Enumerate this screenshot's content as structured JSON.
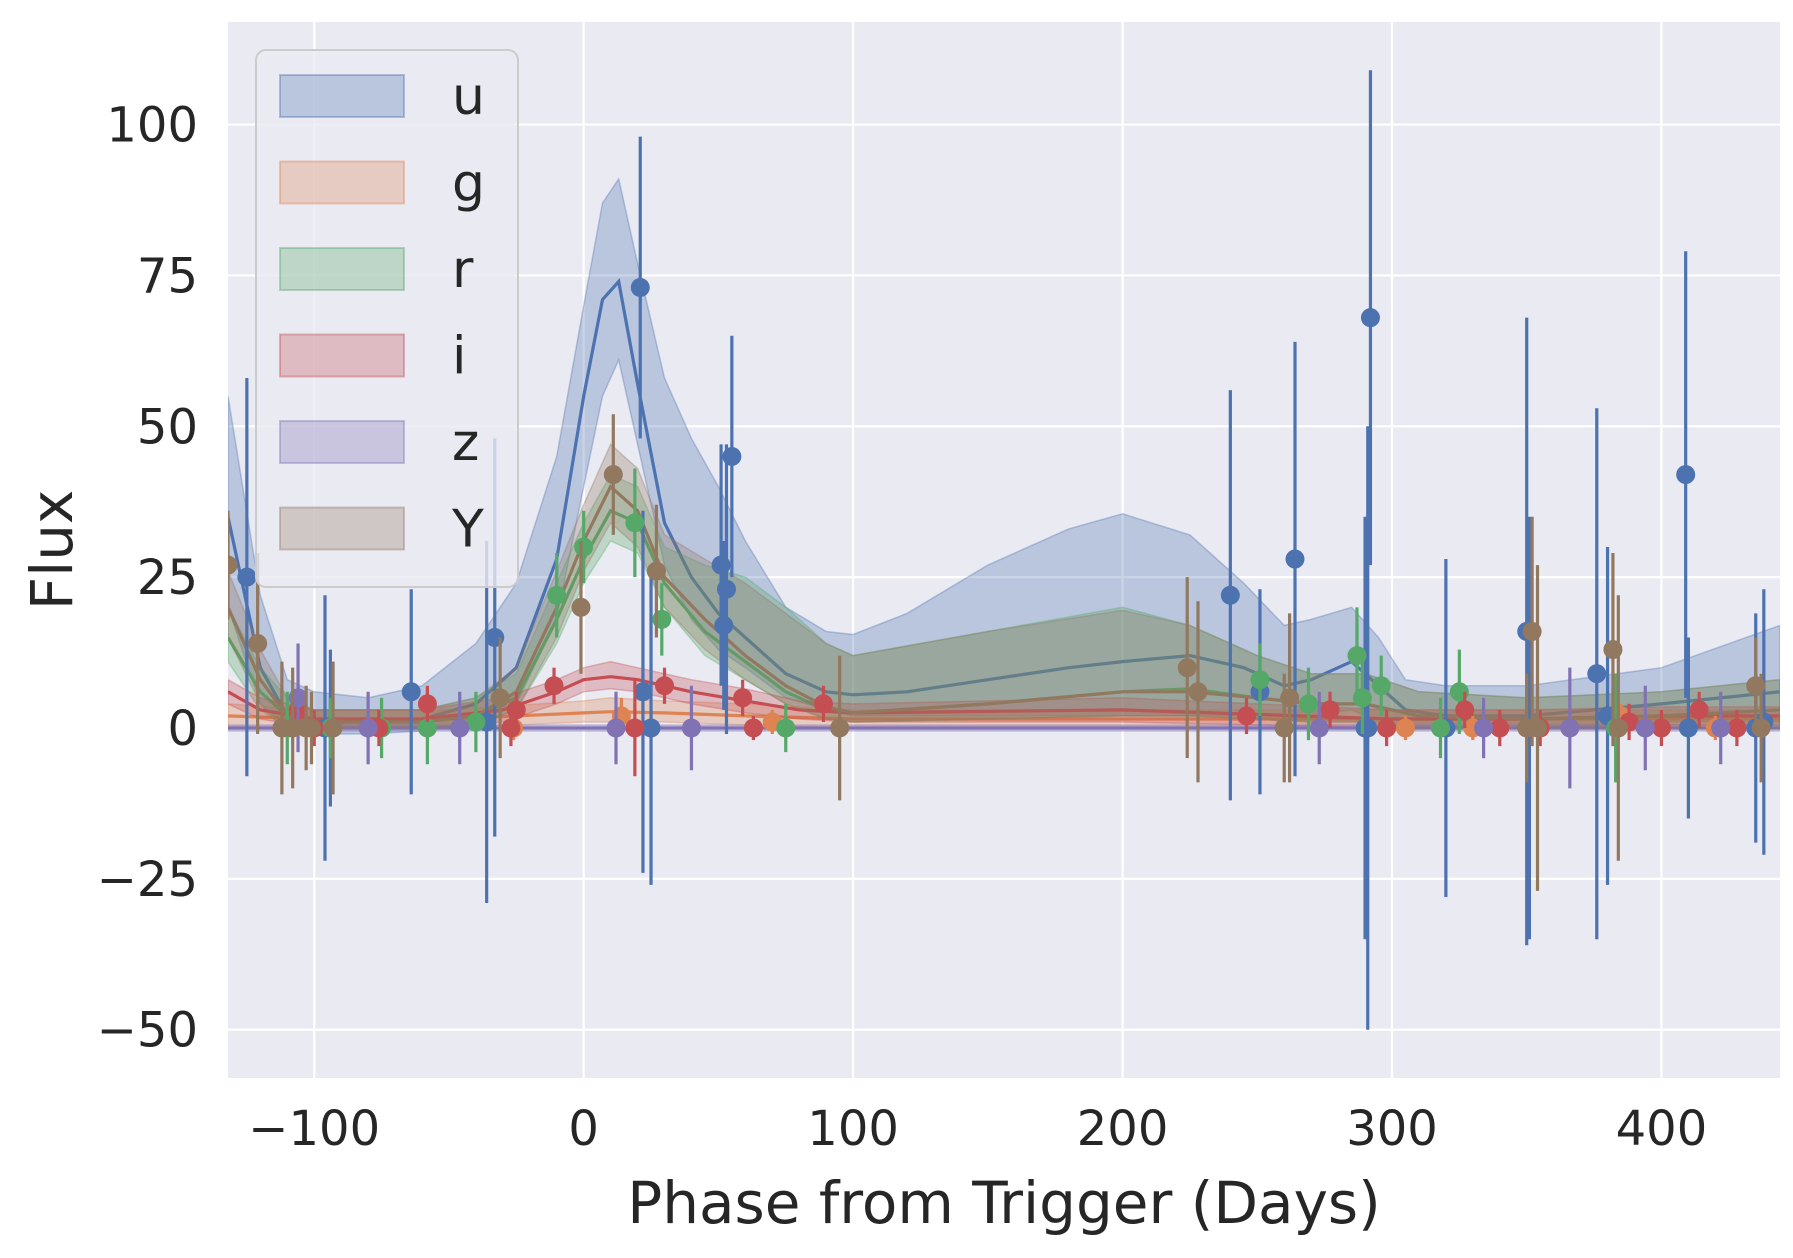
{
  "chart_data": {
    "type": "line",
    "title": "",
    "xlabel": "Phase from Trigger (Days)",
    "ylabel": "Flux",
    "xlim": [
      -132,
      444
    ],
    "ylim": [
      -58,
      117
    ],
    "x_ticks": [
      -100,
      0,
      100,
      200,
      300,
      400
    ],
    "x_tick_labels": [
      "−100",
      "0",
      "100",
      "200",
      "300",
      "400"
    ],
    "y_ticks": [
      -50,
      -25,
      0,
      25,
      50,
      75,
      100
    ],
    "y_tick_labels": [
      "−50",
      "−25",
      "0",
      "25",
      "50",
      "75",
      "100"
    ],
    "grid": true,
    "legend_position": "top-left",
    "style": {
      "background": "#eaeaf2",
      "grid_color": "#ffffff"
    },
    "series": [
      {
        "name": "u",
        "color": "#4c72b0",
        "model_x": [
          -132,
          -120,
          -110,
          -100,
          -80,
          -60,
          -40,
          -25,
          -10,
          0,
          7,
          13,
          20,
          30,
          40,
          50,
          60,
          75,
          90,
          100,
          120,
          150,
          180,
          200,
          225,
          245,
          260,
          270,
          285,
          295,
          305,
          320,
          350,
          400,
          444
        ],
        "model_y": [
          35,
          10,
          2,
          1,
          1,
          1.5,
          4,
          10,
          28,
          55,
          71,
          74,
          57,
          34,
          25,
          19,
          15,
          9,
          6,
          5.5,
          6,
          8,
          10,
          11,
          12,
          10,
          7,
          8,
          11,
          7,
          3,
          2,
          2,
          4,
          6
        ],
        "band_lower": [
          20,
          4,
          -1,
          -1,
          -1,
          -0.5,
          1,
          4,
          18,
          40,
          55,
          61,
          47,
          27,
          18,
          13,
          10,
          5,
          3,
          2,
          2,
          2,
          2,
          2,
          2,
          2,
          1,
          2,
          3,
          1,
          0,
          0,
          0,
          1,
          1
        ],
        "band_upper": [
          55,
          22,
          8,
          6,
          5,
          7,
          14,
          24,
          45,
          70,
          87,
          91,
          77,
          58,
          48,
          40,
          31,
          20,
          16,
          15.5,
          19,
          27,
          33,
          35.5,
          32,
          24,
          17,
          18,
          20,
          15,
          8,
          7,
          7,
          10,
          17
        ],
        "points": [
          {
            "x": -125,
            "y": 25,
            "err": 33
          },
          {
            "x": -96,
            "y": 0,
            "err": 22
          },
          {
            "x": -94,
            "y": 0,
            "err": 13
          },
          {
            "x": -64,
            "y": 6,
            "err": 17
          },
          {
            "x": -36,
            "y": 1,
            "err": 30
          },
          {
            "x": -33,
            "y": 15,
            "err": 33
          },
          {
            "x": 21,
            "y": 73,
            "err": 25
          },
          {
            "x": 22,
            "y": 6,
            "err": 30
          },
          {
            "x": 25,
            "y": 0,
            "err": 26
          },
          {
            "x": 51,
            "y": 27,
            "err": 20
          },
          {
            "x": 52,
            "y": 17,
            "err": 14
          },
          {
            "x": 53,
            "y": 23,
            "err": 24
          },
          {
            "x": 55,
            "y": 45,
            "err": 20
          },
          {
            "x": 240,
            "y": 22,
            "err": 34
          },
          {
            "x": 251,
            "y": 6,
            "err": 17
          },
          {
            "x": 264,
            "y": 28,
            "err": 36
          },
          {
            "x": 290,
            "y": 0,
            "err": 35
          },
          {
            "x": 291,
            "y": 0,
            "err": 50
          },
          {
            "x": 292,
            "y": 68,
            "err": 41
          },
          {
            "x": 320,
            "y": 0,
            "err": 28
          },
          {
            "x": 350,
            "y": 16,
            "err": 52
          },
          {
            "x": 351,
            "y": 0,
            "err": 35
          },
          {
            "x": 376,
            "y": 9,
            "err": 44
          },
          {
            "x": 380,
            "y": 2,
            "err": 28
          },
          {
            "x": 409,
            "y": 42,
            "err": 37
          },
          {
            "x": 410,
            "y": 0,
            "err": 15
          },
          {
            "x": 435,
            "y": 0,
            "err": 19
          },
          {
            "x": 438,
            "y": 1,
            "err": 22
          }
        ]
      },
      {
        "name": "g",
        "color": "#dd8452",
        "model_x": [
          -132,
          -100,
          -50,
          0,
          10,
          30,
          60,
          100,
          200,
          300,
          350,
          400,
          444
        ],
        "model_y": [
          2,
          1.5,
          1.5,
          2.5,
          2.7,
          2.5,
          2,
          1.5,
          1.5,
          1.5,
          1.5,
          1.5,
          1.5
        ],
        "band_lower": [
          0,
          0,
          0,
          1,
          1,
          1,
          0.5,
          0,
          0,
          0,
          0,
          0,
          0
        ],
        "band_upper": [
          4,
          3,
          3,
          4.5,
          5,
          4.5,
          4,
          3,
          3,
          3,
          3,
          3,
          3
        ],
        "points": [
          {
            "x": -26,
            "y": 0,
            "err": 2
          },
          {
            "x": 14,
            "y": 2,
            "err": 3
          },
          {
            "x": 70,
            "y": 1,
            "err": 2
          },
          {
            "x": 305,
            "y": 0,
            "err": 2
          },
          {
            "x": 330,
            "y": 0,
            "err": 2
          },
          {
            "x": 385,
            "y": 2,
            "err": 2
          },
          {
            "x": 420,
            "y": 0,
            "err": 2
          }
        ]
      },
      {
        "name": "r",
        "color": "#55a868",
        "model_x": [
          -132,
          -120,
          -110,
          -100,
          -80,
          -60,
          -40,
          -25,
          -10,
          0,
          10,
          20,
          30,
          45,
          60,
          75,
          90,
          100,
          150,
          200,
          225,
          250,
          270,
          290,
          310,
          350,
          400,
          444
        ],
        "model_y": [
          15,
          6,
          2,
          1,
          1,
          1,
          2,
          5,
          18,
          28,
          36,
          34,
          24,
          16,
          11,
          6,
          3,
          2.5,
          4,
          6,
          6.5,
          5,
          4,
          4,
          2,
          1.5,
          2,
          3
        ],
        "band_lower": [
          11,
          3,
          0,
          0,
          0,
          0,
          0.5,
          3,
          14,
          24,
          31,
          29,
          20,
          12,
          8,
          4,
          1.5,
          1,
          1.5,
          2,
          2,
          1.5,
          1,
          1,
          0,
          0,
          0,
          0
        ],
        "band_upper": [
          20,
          10,
          5,
          3,
          3,
          3,
          5,
          9,
          24,
          34,
          42,
          40,
          30,
          27,
          25,
          20,
          14,
          12,
          16,
          20,
          17,
          12,
          9,
          9,
          6,
          5,
          6,
          8
        ],
        "points": [
          {
            "x": -110,
            "y": 0,
            "err": 6
          },
          {
            "x": -94,
            "y": 0,
            "err": 5
          },
          {
            "x": -75,
            "y": 0,
            "err": 5
          },
          {
            "x": -58,
            "y": 0,
            "err": 6
          },
          {
            "x": -40,
            "y": 1,
            "err": 5
          },
          {
            "x": -10,
            "y": 22,
            "err": 7
          },
          {
            "x": 0,
            "y": 30,
            "err": 6
          },
          {
            "x": 19,
            "y": 34,
            "err": 9
          },
          {
            "x": 29,
            "y": 18,
            "err": 6
          },
          {
            "x": 75,
            "y": 0,
            "err": 4
          },
          {
            "x": 251,
            "y": 8,
            "err": 6
          },
          {
            "x": 269,
            "y": 4,
            "err": 6
          },
          {
            "x": 287,
            "y": 12,
            "err": 8
          },
          {
            "x": 289,
            "y": 5,
            "err": 6
          },
          {
            "x": 296,
            "y": 7,
            "err": 5
          },
          {
            "x": 318,
            "y": 0,
            "err": 5
          },
          {
            "x": 325,
            "y": 6,
            "err": 7
          },
          {
            "x": 383,
            "y": 0,
            "err": 9
          }
        ]
      },
      {
        "name": "i",
        "color": "#c44e52",
        "model_x": [
          -132,
          -120,
          -100,
          -60,
          -30,
          -10,
          0,
          10,
          20,
          40,
          60,
          80,
          100,
          200,
          300,
          350,
          400,
          444
        ],
        "model_y": [
          6,
          3,
          1.5,
          1.5,
          3,
          6,
          8,
          8.5,
          8,
          6,
          4.5,
          3,
          2.5,
          3,
          1.5,
          1.5,
          2,
          2
        ],
        "band_lower": [
          4,
          1.5,
          0,
          0,
          1,
          4,
          6,
          6.5,
          6,
          4,
          2.5,
          1.5,
          1,
          1,
          0,
          0,
          0.5,
          0.5
        ],
        "band_upper": [
          8,
          5,
          3,
          3,
          5,
          8,
          10,
          11,
          10,
          8,
          6.5,
          4.5,
          4,
          5,
          3,
          3,
          3.5,
          3.5
        ],
        "points": [
          {
            "x": -106,
            "y": 3,
            "err": 4
          },
          {
            "x": -100,
            "y": 0,
            "err": 3
          },
          {
            "x": -76,
            "y": 0,
            "err": 3
          },
          {
            "x": -58,
            "y": 4,
            "err": 3
          },
          {
            "x": -27,
            "y": 0,
            "err": 3
          },
          {
            "x": -25,
            "y": 3,
            "err": 3
          },
          {
            "x": -11,
            "y": 7,
            "err": 3
          },
          {
            "x": 19,
            "y": 0,
            "err": 8
          },
          {
            "x": 30,
            "y": 7,
            "err": 3
          },
          {
            "x": 59,
            "y": 5,
            "err": 3
          },
          {
            "x": 63,
            "y": 0,
            "err": 2
          },
          {
            "x": 89,
            "y": 4,
            "err": 3
          },
          {
            "x": 246,
            "y": 2,
            "err": 3
          },
          {
            "x": 277,
            "y": 3,
            "err": 3
          },
          {
            "x": 298,
            "y": 0,
            "err": 3
          },
          {
            "x": 327,
            "y": 3,
            "err": 3
          },
          {
            "x": 340,
            "y": 0,
            "err": 3
          },
          {
            "x": 355,
            "y": 0,
            "err": 3
          },
          {
            "x": 388,
            "y": 1,
            "err": 3
          },
          {
            "x": 400,
            "y": 0,
            "err": 3
          },
          {
            "x": 414,
            "y": 3,
            "err": 3
          },
          {
            "x": 428,
            "y": 0,
            "err": 3
          }
        ]
      },
      {
        "name": "z",
        "color": "#8172b3",
        "model_x": [
          -132,
          444
        ],
        "model_y": [
          0,
          0
        ],
        "band_lower": [
          -0.5,
          -0.5
        ],
        "band_upper": [
          0.5,
          0.5
        ],
        "points": [
          {
            "x": -106,
            "y": 5,
            "err": 9
          },
          {
            "x": -80,
            "y": 0,
            "err": 6
          },
          {
            "x": -46,
            "y": 0,
            "err": 6
          },
          {
            "x": 12,
            "y": 0,
            "err": 6
          },
          {
            "x": 40,
            "y": 0,
            "err": 7
          },
          {
            "x": 273,
            "y": 0,
            "err": 6
          },
          {
            "x": 334,
            "y": 0,
            "err": 5
          },
          {
            "x": 366,
            "y": 0,
            "err": 10
          },
          {
            "x": 394,
            "y": 0,
            "err": 7
          },
          {
            "x": 422,
            "y": 0,
            "err": 6
          }
        ]
      },
      {
        "name": "Y",
        "color": "#937860",
        "model_x": [
          -132,
          -120,
          -110,
          -100,
          -80,
          -60,
          -40,
          -25,
          -10,
          0,
          10,
          20,
          30,
          45,
          60,
          75,
          90,
          100,
          150,
          200,
          225,
          250,
          270,
          290,
          310,
          350,
          400,
          444
        ],
        "model_y": [
          20,
          8,
          2,
          1,
          1,
          1,
          2,
          6,
          20,
          31,
          40,
          36,
          25,
          18,
          12,
          7,
          3.5,
          2.5,
          4,
          6,
          6,
          5,
          4,
          4,
          2,
          1.5,
          2,
          3
        ],
        "band_lower": [
          15,
          4,
          0,
          0,
          0,
          0,
          0.5,
          3,
          15,
          26,
          34,
          30,
          20,
          13,
          8,
          4,
          1.5,
          1,
          1.5,
          2,
          2,
          1.5,
          1,
          1,
          0,
          0,
          0,
          0
        ],
        "band_upper": [
          26,
          13,
          5,
          3,
          3,
          3,
          5,
          10,
          26,
          37,
          47,
          43,
          32,
          28,
          24,
          19,
          14,
          12,
          16,
          19.5,
          17,
          12,
          9,
          9,
          6,
          5,
          6,
          8
        ],
        "points": [
          {
            "x": -132,
            "y": 27,
            "err": 9
          },
          {
            "x": -121,
            "y": 14,
            "err": 15
          },
          {
            "x": -112,
            "y": 0,
            "err": 11
          },
          {
            "x": -108,
            "y": 0,
            "err": 10
          },
          {
            "x": -103,
            "y": 0,
            "err": 7
          },
          {
            "x": -101,
            "y": 0,
            "err": 6
          },
          {
            "x": -93,
            "y": 0,
            "err": 11
          },
          {
            "x": -31,
            "y": 5,
            "err": 10
          },
          {
            "x": -1,
            "y": 20,
            "err": 11
          },
          {
            "x": 11,
            "y": 42,
            "err": 10
          },
          {
            "x": 27,
            "y": 26,
            "err": 11
          },
          {
            "x": 95,
            "y": 0,
            "err": 12
          },
          {
            "x": 224,
            "y": 10,
            "err": 15
          },
          {
            "x": 228,
            "y": 6,
            "err": 15
          },
          {
            "x": 260,
            "y": 0,
            "err": 9
          },
          {
            "x": 262,
            "y": 5,
            "err": 14
          },
          {
            "x": 350,
            "y": 0,
            "err": 9
          },
          {
            "x": 352,
            "y": 16,
            "err": 19
          },
          {
            "x": 354,
            "y": 0,
            "err": 27
          },
          {
            "x": 382,
            "y": 13,
            "err": 16
          },
          {
            "x": 384,
            "y": 0,
            "err": 22
          },
          {
            "x": 435,
            "y": 7,
            "err": 8
          },
          {
            "x": 437,
            "y": 0,
            "err": 9
          }
        ]
      }
    ]
  }
}
